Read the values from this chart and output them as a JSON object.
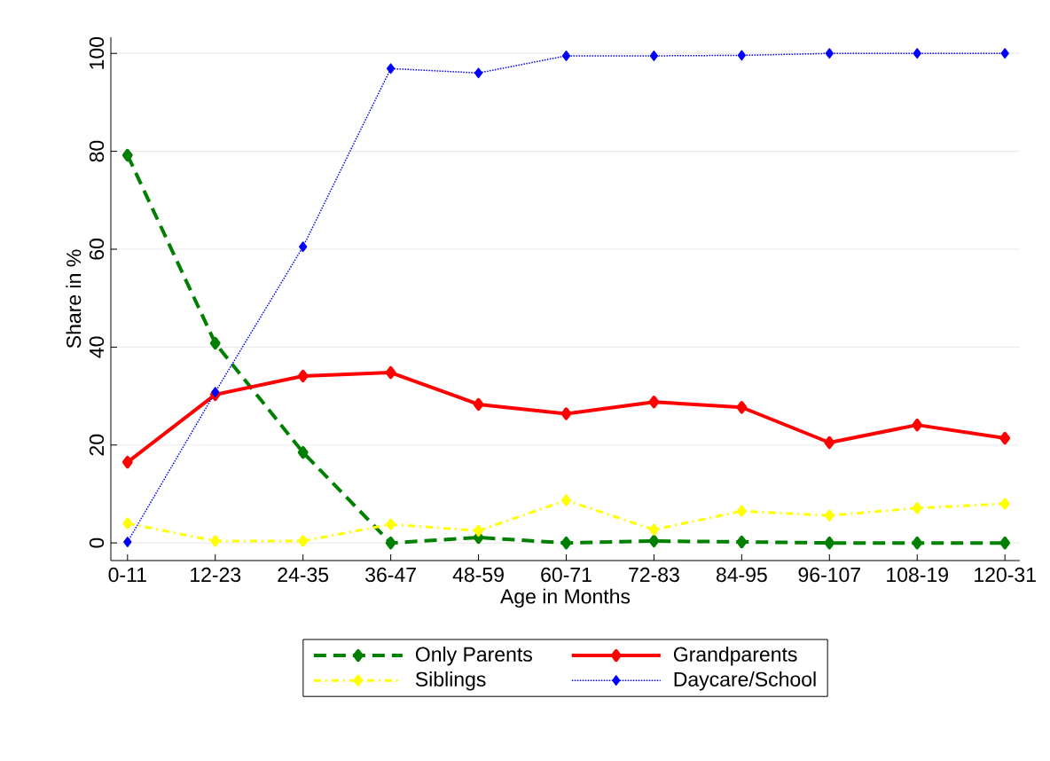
{
  "chart_data": {
    "type": "line",
    "xlabel": "Age in Months",
    "ylabel": "Share in %",
    "categories": [
      "0-11",
      "12-23",
      "24-35",
      "36-47",
      "48-59",
      "60-71",
      "72-83",
      "84-95",
      "96-107",
      "108-19",
      "120-31"
    ],
    "series": [
      {
        "name": "Only Parents",
        "color": "#008000",
        "line_style": "dashed",
        "values": [
          79.2,
          40.8,
          18.5,
          0,
          1.1,
          0,
          0.4,
          0.2,
          0,
          0,
          0
        ]
      },
      {
        "name": "Grandparents",
        "color": "#ff0000",
        "line_style": "solid",
        "values": [
          16.5,
          30.3,
          34.1,
          34.8,
          28.3,
          26.4,
          28.8,
          27.7,
          20.5,
          24.1,
          21.4
        ]
      },
      {
        "name": "Siblings",
        "color": "#ffff00",
        "line_style": "dashdot",
        "values": [
          4.0,
          0.4,
          0.4,
          3.8,
          2.5,
          8.7,
          2.7,
          6.5,
          5.6,
          7.1,
          8.0
        ]
      },
      {
        "name": "Daycare/School",
        "color": "#0000ff",
        "line_style": "dotted",
        "values": [
          0.2,
          30.8,
          60.5,
          96.9,
          96.0,
          99.5,
          99.5,
          99.6,
          100,
          100,
          100
        ]
      }
    ],
    "ylim": [
      -3.6,
      103.3
    ],
    "yticks": [
      0,
      20,
      40,
      60,
      80,
      100
    ],
    "grid": "y",
    "legend": "bottom",
    "marker": "diamond"
  }
}
